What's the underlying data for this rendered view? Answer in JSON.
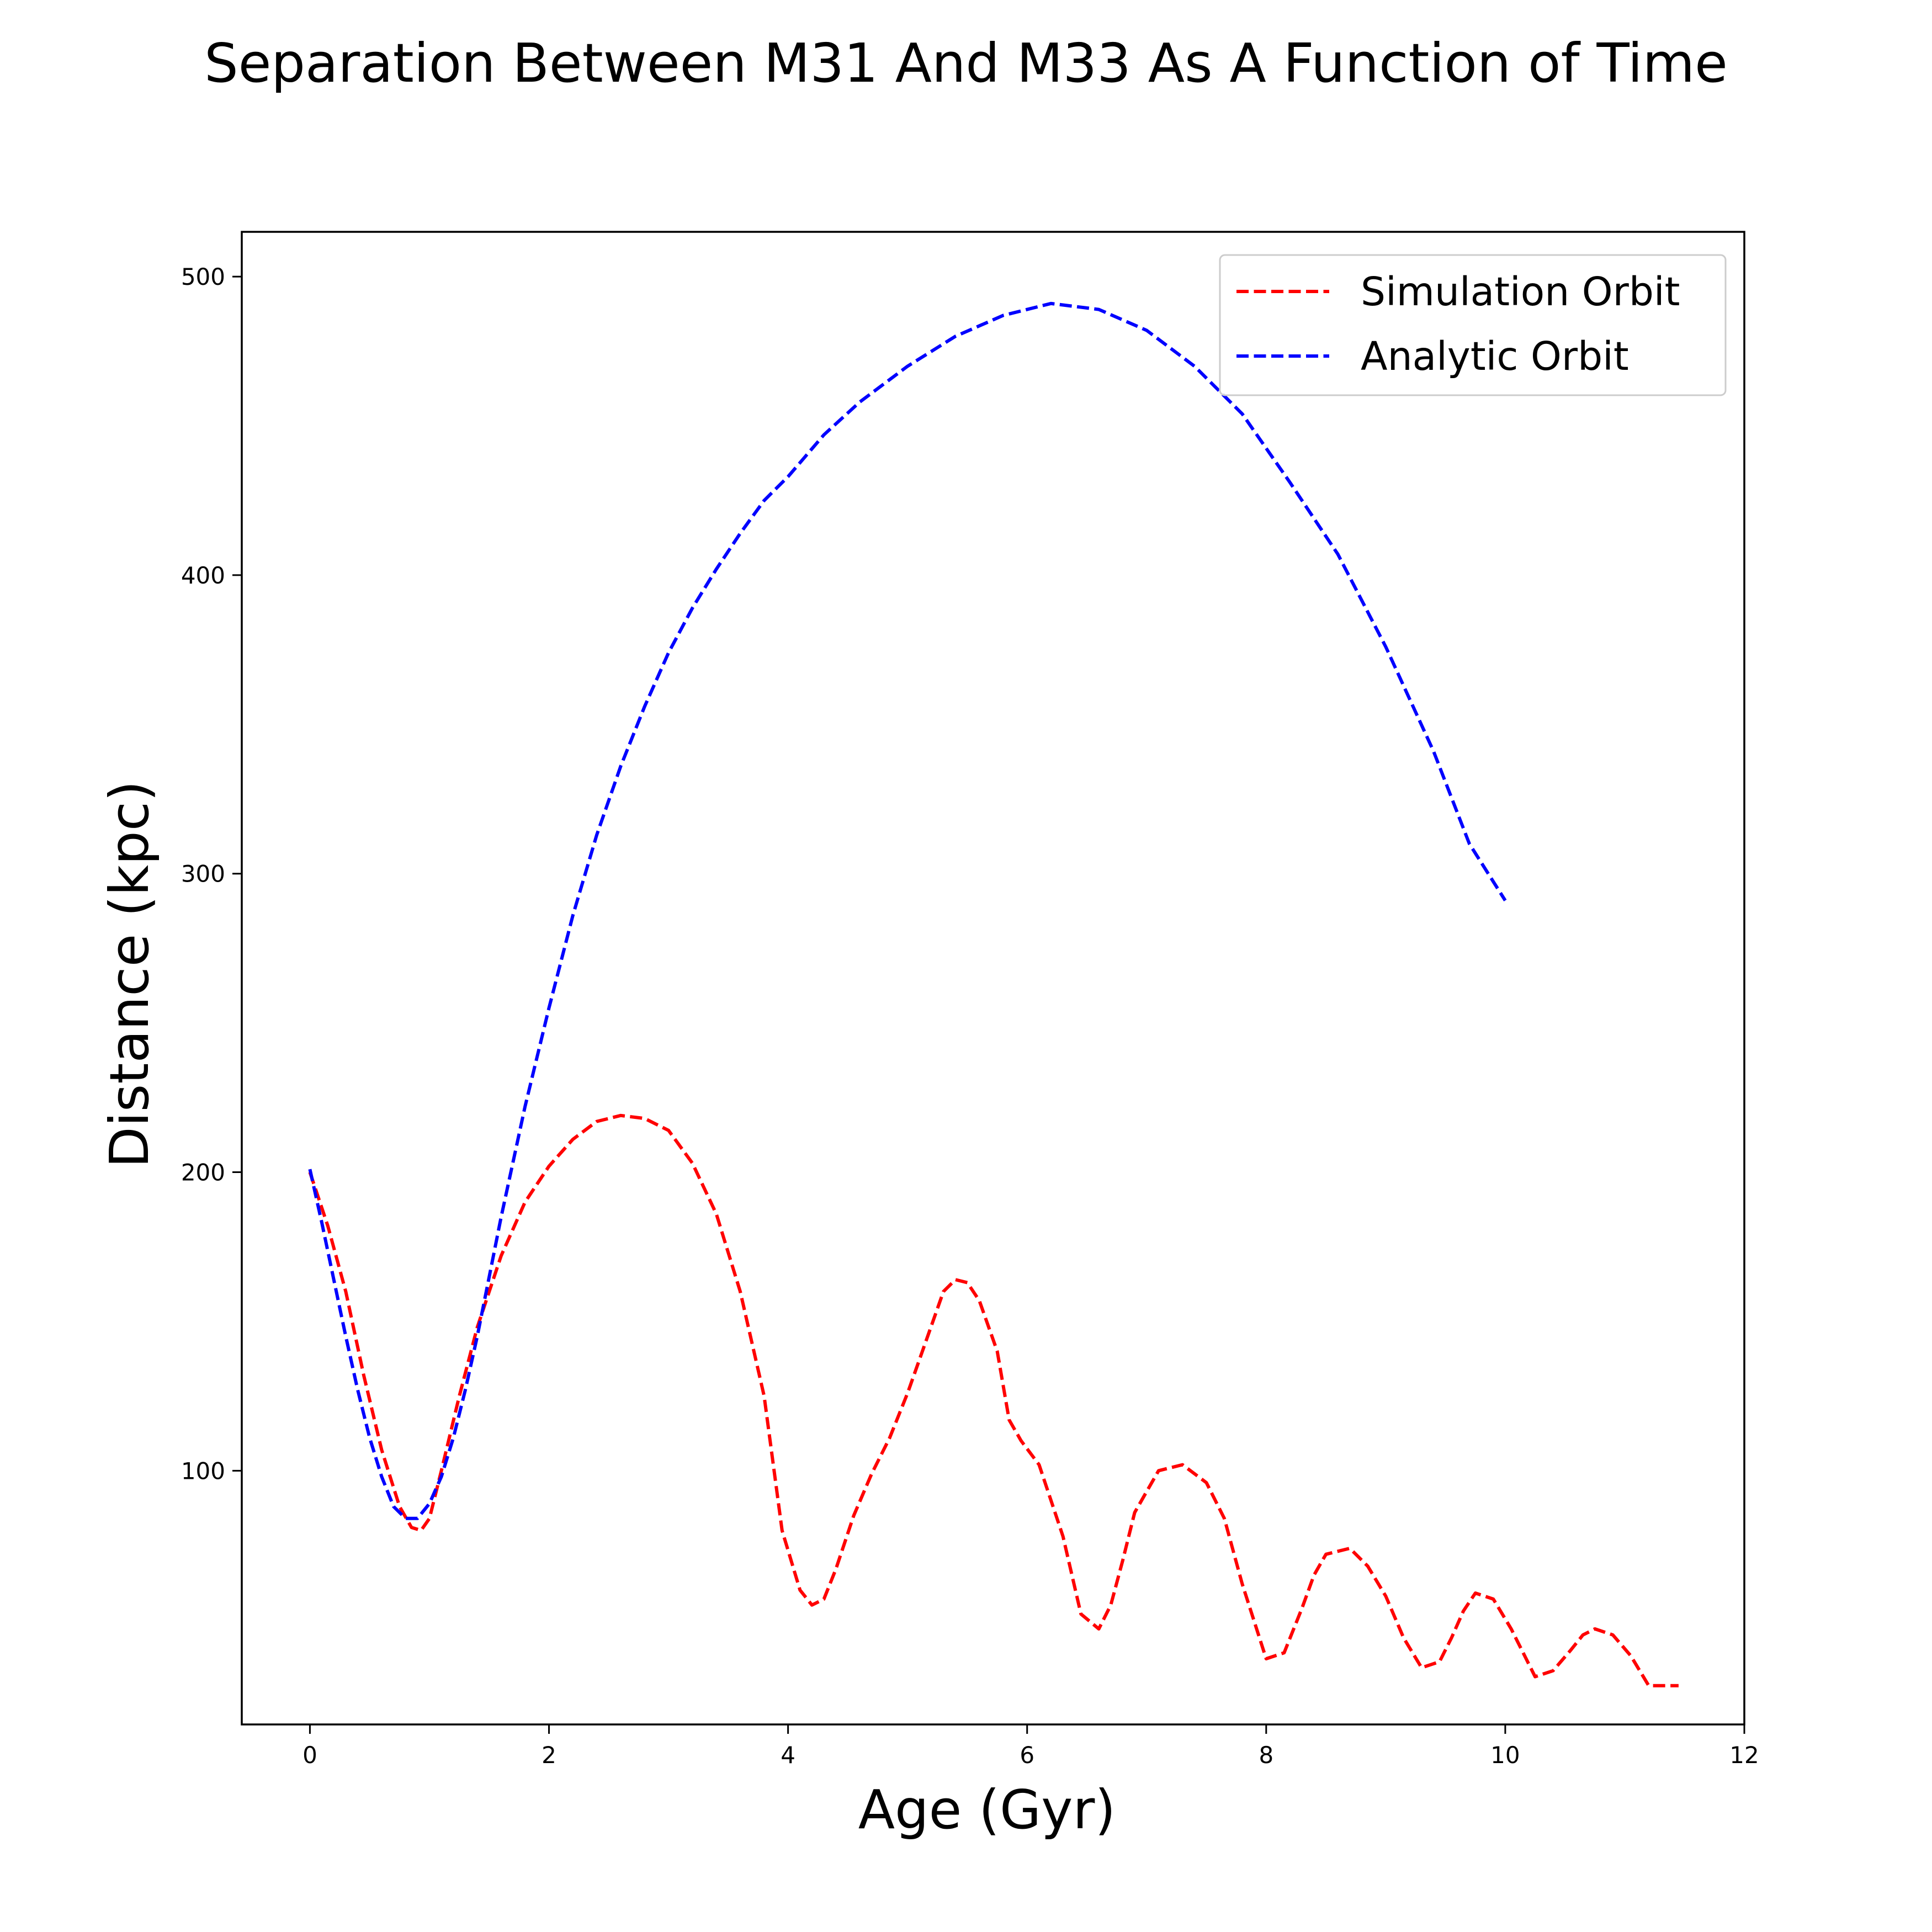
{
  "chart_data": {
    "type": "line",
    "title": "Separation Between M31 And M33 As A Function of Time",
    "xlabel": "Age (Gyr)",
    "ylabel": "Distance (kpc)",
    "xlim": [
      -0.57,
      12
    ],
    "ylim": [
      15,
      515
    ],
    "xticks": [
      0,
      2,
      4,
      6,
      8,
      10,
      12
    ],
    "yticks": [
      100,
      200,
      300,
      400,
      500
    ],
    "grid": false,
    "legend_position": "top-right",
    "series": [
      {
        "name": "Simulation Orbit",
        "color": "#ff0000",
        "style": "dashed",
        "x": [
          0.0,
          0.15,
          0.3,
          0.45,
          0.6,
          0.75,
          0.85,
          0.93,
          1.0,
          1.1,
          1.25,
          1.4,
          1.6,
          1.8,
          2.0,
          2.2,
          2.4,
          2.6,
          2.8,
          3.0,
          3.2,
          3.4,
          3.6,
          3.8,
          3.95,
          4.1,
          4.2,
          4.3,
          4.4,
          4.55,
          4.7,
          4.85,
          5.0,
          5.15,
          5.3,
          5.4,
          5.5,
          5.6,
          5.75,
          5.85,
          5.95,
          6.1,
          6.3,
          6.45,
          6.6,
          6.7,
          6.8,
          6.9,
          7.1,
          7.3,
          7.5,
          7.65,
          7.8,
          8.0,
          8.15,
          8.3,
          8.4,
          8.5,
          8.7,
          8.85,
          9.0,
          9.15,
          9.3,
          9.45,
          9.55,
          9.65,
          9.75,
          9.9,
          10.05,
          10.25,
          10.4,
          10.55,
          10.65,
          10.75,
          10.9,
          11.05,
          11.2,
          11.45
        ],
        "y": [
          200,
          182,
          160,
          132,
          107,
          88,
          81,
          80,
          84,
          100,
          125,
          148,
          172,
          190,
          202,
          211,
          217,
          219,
          218,
          214,
          203,
          186,
          160,
          125,
          80,
          60,
          55,
          57,
          67,
          85,
          99,
          111,
          126,
          143,
          160,
          164,
          163,
          157,
          140,
          117,
          110,
          102,
          78,
          52,
          47,
          55,
          70,
          86,
          100,
          102,
          96,
          84,
          62,
          37,
          39,
          54,
          65,
          72,
          74,
          68,
          58,
          44,
          34,
          36,
          44,
          53,
          59,
          57,
          47,
          31,
          33,
          40,
          45,
          47,
          45,
          38,
          28,
          28
        ]
      },
      {
        "name": "Analytic Orbit",
        "color": "#0000ff",
        "style": "dashed",
        "x": [
          0.0,
          0.1,
          0.2,
          0.3,
          0.4,
          0.5,
          0.6,
          0.7,
          0.8,
          0.9,
          1.0,
          1.1,
          1.2,
          1.3,
          1.4,
          1.5,
          1.6,
          1.8,
          2.0,
          2.2,
          2.4,
          2.6,
          2.8,
          3.0,
          3.2,
          3.4,
          3.6,
          3.8,
          4.0,
          4.3,
          4.6,
          5.0,
          5.4,
          5.8,
          6.2,
          6.6,
          7.0,
          7.4,
          7.8,
          8.2,
          8.6,
          9.0,
          9.4,
          9.7,
          10.0
        ],
        "y": [
          201,
          183,
          164,
          145,
          127,
          111,
          98,
          88,
          84,
          84,
          89,
          98,
          111,
          127,
          145,
          165,
          185,
          222,
          255,
          286,
          313,
          336,
          356,
          374,
          389,
          402,
          414,
          425,
          433,
          447,
          458,
          470,
          480,
          487,
          491,
          489,
          482,
          470,
          454,
          431,
          407,
          376,
          341,
          310,
          291
        ]
      }
    ]
  }
}
